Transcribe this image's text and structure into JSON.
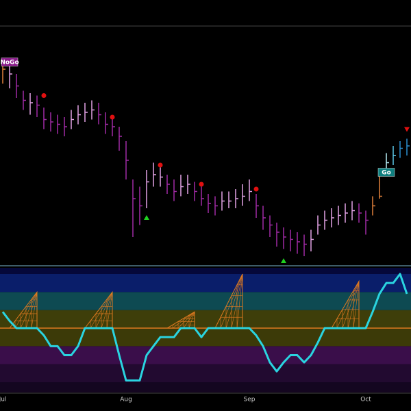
{
  "chart_data": {
    "type": "ohlc",
    "categories": [
      "Jul",
      null,
      null,
      null,
      null,
      null,
      null,
      null,
      null,
      null,
      null,
      null,
      null,
      null,
      null,
      null,
      null,
      null,
      "Aug",
      null,
      null,
      null,
      null,
      null,
      null,
      null,
      null,
      null,
      null,
      null,
      null,
      null,
      null,
      null,
      null,
      null,
      "Sep",
      null,
      null,
      null,
      null,
      null,
      null,
      null,
      null,
      null,
      null,
      null,
      null,
      null,
      null,
      null,
      null,
      "Oct",
      null,
      null,
      null,
      null,
      null,
      null
    ],
    "close": [
      82,
      80,
      75,
      69,
      68,
      67,
      61,
      60,
      59,
      58,
      61,
      63,
      64,
      65,
      63,
      59,
      58,
      54,
      44,
      28,
      25,
      35,
      38,
      37,
      34,
      31,
      33,
      34,
      31,
      28,
      26,
      25,
      27,
      27,
      28,
      29,
      31,
      25,
      20,
      17,
      14,
      12,
      11,
      10,
      9,
      11,
      17,
      19,
      20,
      21,
      22,
      23,
      22,
      19,
      25,
      29,
      43,
      46,
      49,
      50
    ],
    "high": [
      85,
      84,
      80,
      73,
      72,
      71,
      66,
      64,
      63,
      62,
      65,
      67,
      68,
      69,
      68,
      64,
      62,
      58,
      52,
      36,
      33,
      40,
      43,
      41,
      38,
      36,
      38,
      38,
      35,
      33,
      30,
      29,
      31,
      31,
      32,
      34,
      36,
      30,
      25,
      21,
      18,
      16,
      15,
      14,
      13,
      15,
      21,
      23,
      24,
      25,
      26,
      27,
      26,
      23,
      29,
      39,
      47,
      50,
      52,
      53
    ],
    "low": [
      76,
      74,
      70,
      65,
      63,
      62,
      57,
      56,
      55,
      54,
      57,
      59,
      60,
      61,
      59,
      55,
      54,
      48,
      36,
      12,
      17,
      24,
      33,
      33,
      30,
      27,
      29,
      30,
      27,
      25,
      22,
      21,
      23,
      24,
      24,
      25,
      27,
      20,
      15,
      12,
      8,
      7,
      6,
      5,
      4,
      6,
      13,
      15,
      16,
      17,
      18,
      19,
      18,
      13,
      21,
      28,
      38,
      42,
      45,
      46
    ],
    "colors": [
      "#e0803a",
      "#e3a3e6",
      "#a12aa5",
      "#a12aa5",
      "#e3a3e6",
      "#a12aa5",
      "#a12aa5",
      "#a12aa5",
      "#a12aa5",
      "#a12aa5",
      "#e3a3e6",
      "#e3a3e6",
      "#e3a3e6",
      "#e3a3e6",
      "#a12aa5",
      "#a12aa5",
      "#a12aa5",
      "#a12aa5",
      "#a12aa5",
      "#a12aa5",
      "#a12aa5",
      "#e3a3e6",
      "#e3a3e6",
      "#e3a3e6",
      "#a12aa5",
      "#a12aa5",
      "#e3a3e6",
      "#e3a3e6",
      "#a12aa5",
      "#a12aa5",
      "#a12aa5",
      "#a12aa5",
      "#e3a3e6",
      "#e3a3e6",
      "#e3a3e6",
      "#e3a3e6",
      "#e3a3e6",
      "#a12aa5",
      "#a12aa5",
      "#a12aa5",
      "#a12aa5",
      "#a12aa5",
      "#a12aa5",
      "#a12aa5",
      "#a12aa5",
      "#e3a3e6",
      "#e3a3e6",
      "#e3a3e6",
      "#e3a3e6",
      "#e3a3e6",
      "#e3a3e6",
      "#e3a3e6",
      "#a12aa5",
      "#a12aa5",
      "#e0803a",
      "#e0803a",
      "#b8f0f8",
      "#5cc8e8",
      "#2a8fd0",
      "#2a8fd0"
    ],
    "ylim": [
      0,
      100
    ],
    "red_dots": {
      "index": [
        6,
        16,
        23,
        29,
        37
      ],
      "values": [
        71,
        62,
        42,
        34,
        32
      ],
      "color": "#e01010"
    },
    "red_triangles": {
      "index": [
        59
      ],
      "values": [
        57
      ],
      "color": "#e01010"
    },
    "green_triangles": {
      "index": [
        21,
        41
      ],
      "values": [
        20,
        2
      ],
      "color": "#20d020"
    },
    "signals": [
      {
        "label": "NoGo",
        "index": 0,
        "value": 85,
        "color": "#8a1a8a"
      },
      {
        "label": "Go",
        "index": 55,
        "value": 39,
        "color": "#0f7f7f"
      }
    ],
    "oscillator": {
      "values": [
        0.9,
        0.4,
        0,
        0,
        0,
        0,
        -0.4,
        -1,
        -1,
        -1.5,
        -1.5,
        -1,
        0,
        0,
        0,
        0,
        0,
        -1.5,
        -2.9,
        -2.9,
        -2.9,
        -1.5,
        -1,
        -0.5,
        -0.5,
        -0.5,
        0,
        0,
        0,
        -0.5,
        0,
        0,
        0,
        0,
        0,
        0,
        0,
        -0.4,
        -1,
        -1.9,
        -2.4,
        -1.9,
        -1.5,
        -1.5,
        -1.9,
        -1.5,
        -0.8,
        0,
        0,
        0,
        0,
        0,
        0,
        0,
        0.9,
        1.9,
        2.5,
        2.5,
        3,
        1.9
      ],
      "color": "#2ad4e0",
      "ylim": [
        -3,
        3
      ],
      "squeeze": {
        "index": [
          5,
          16,
          28,
          35,
          52
        ],
        "values": [
          2,
          2,
          0.9,
          3,
          2.6
        ],
        "color": "#e07a20"
      }
    }
  }
}
